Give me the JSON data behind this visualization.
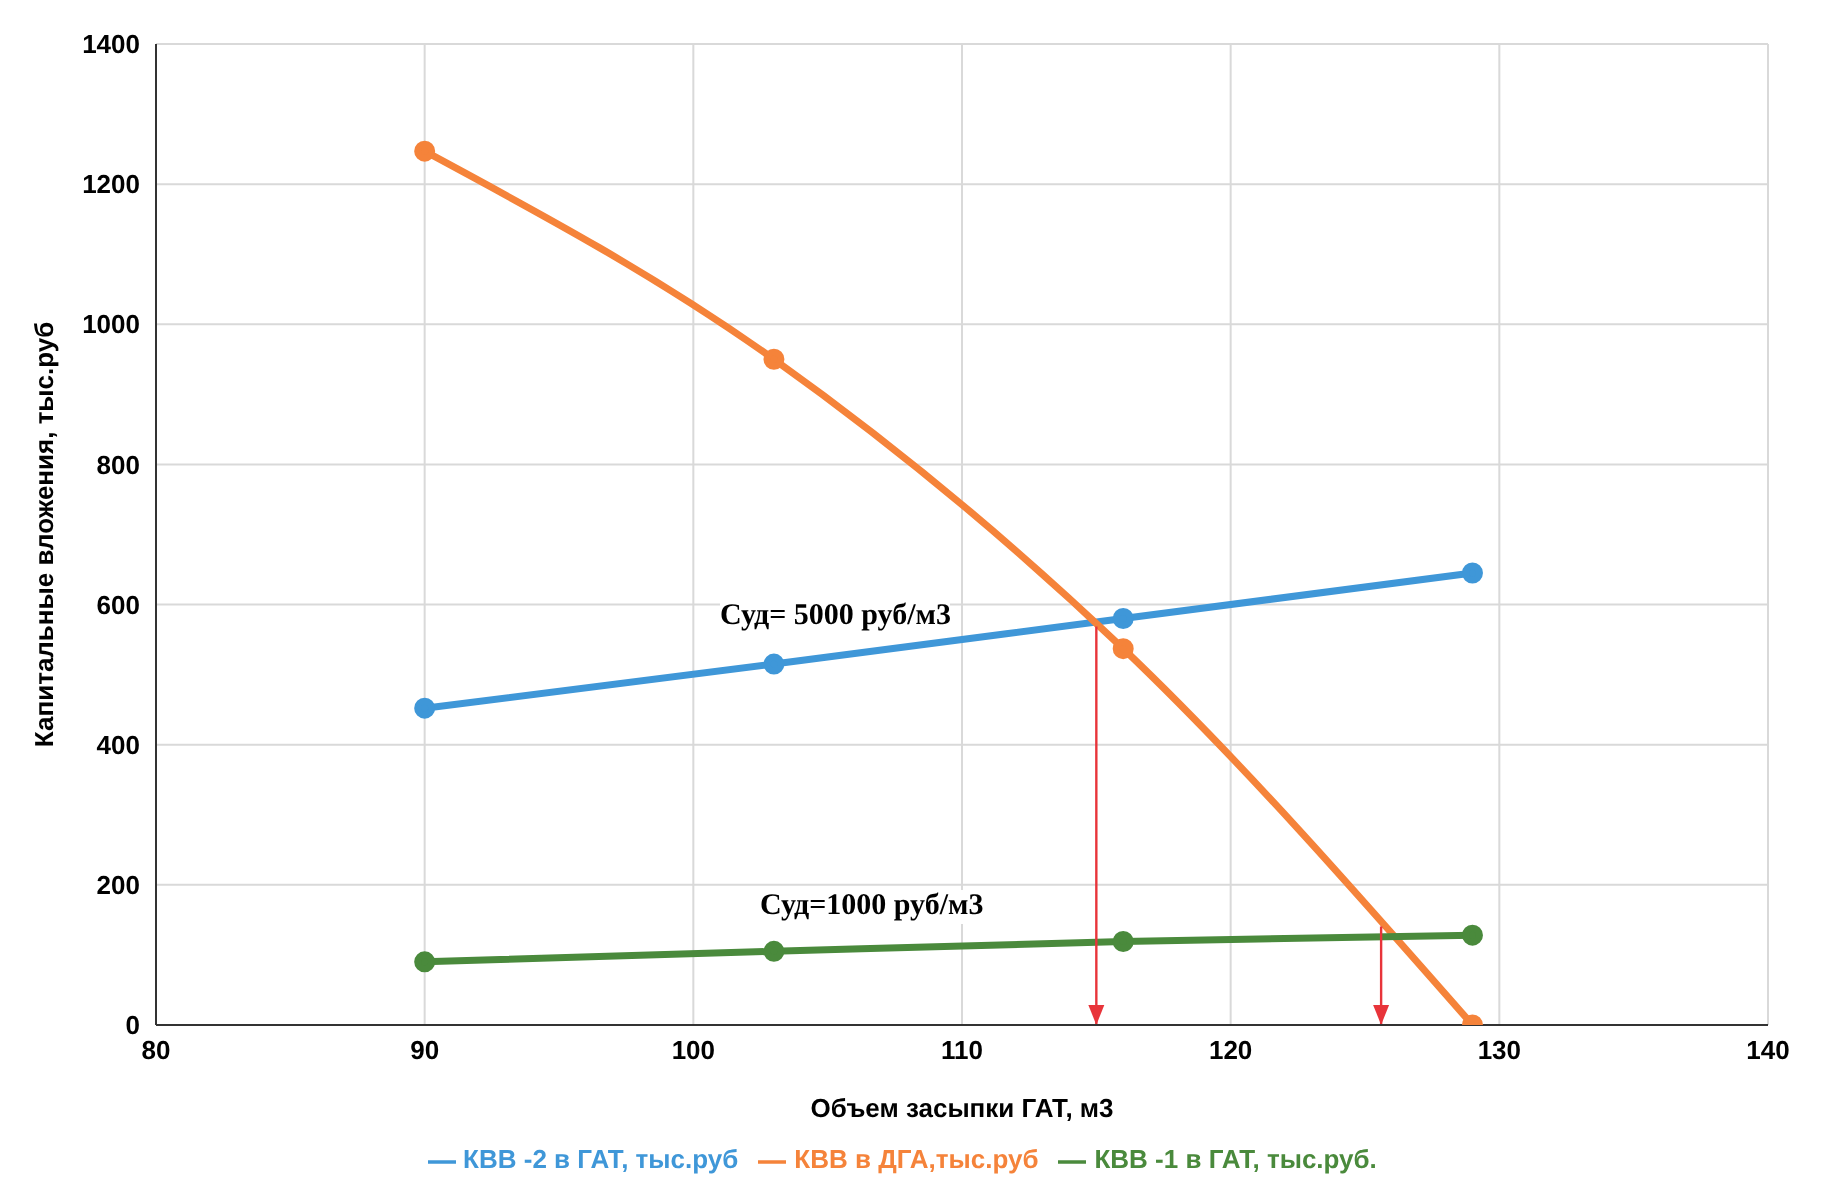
{
  "chart_data": {
    "type": "line",
    "xlabel": "Объем засыпки ГАТ, м3",
    "ylabel": "Капитальные вложения, тыс.руб",
    "x": [
      90,
      103,
      116,
      129
    ],
    "series": [
      {
        "name": "КВВ -2 в ГАТ, тыс.руб",
        "color": "#3f97d8",
        "values": [
          452,
          515,
          580,
          645
        ]
      },
      {
        "name": "КВВ в ДГА,тыс.руб",
        "color": "#f5833a",
        "values": [
          1247,
          950,
          537,
          0
        ]
      },
      {
        "name": "КВВ -1  в ГАТ, тыс.руб.",
        "color": "#4a8a3c",
        "values": [
          90,
          105,
          119,
          128
        ]
      }
    ],
    "xlim": [
      80,
      140
    ],
    "xticks": [
      80,
      90,
      100,
      110,
      120,
      130,
      140
    ],
    "ylim": [
      0,
      1400
    ],
    "yticks": [
      0,
      200,
      400,
      600,
      800,
      1000,
      1200,
      1400
    ],
    "ref_lines": [
      {
        "axis": "x",
        "value": 115,
        "label": null,
        "color": "#e8343a"
      },
      {
        "axis": "x",
        "value": 125.6,
        "label": null,
        "color": "#e8343a"
      }
    ],
    "annotations": [
      "Суд= 5000 руб/м3",
      "Суд=1000 руб/м3"
    ],
    "grid": true,
    "legend": "bottom",
    "marker": "circle",
    "line_style": "solid"
  }
}
